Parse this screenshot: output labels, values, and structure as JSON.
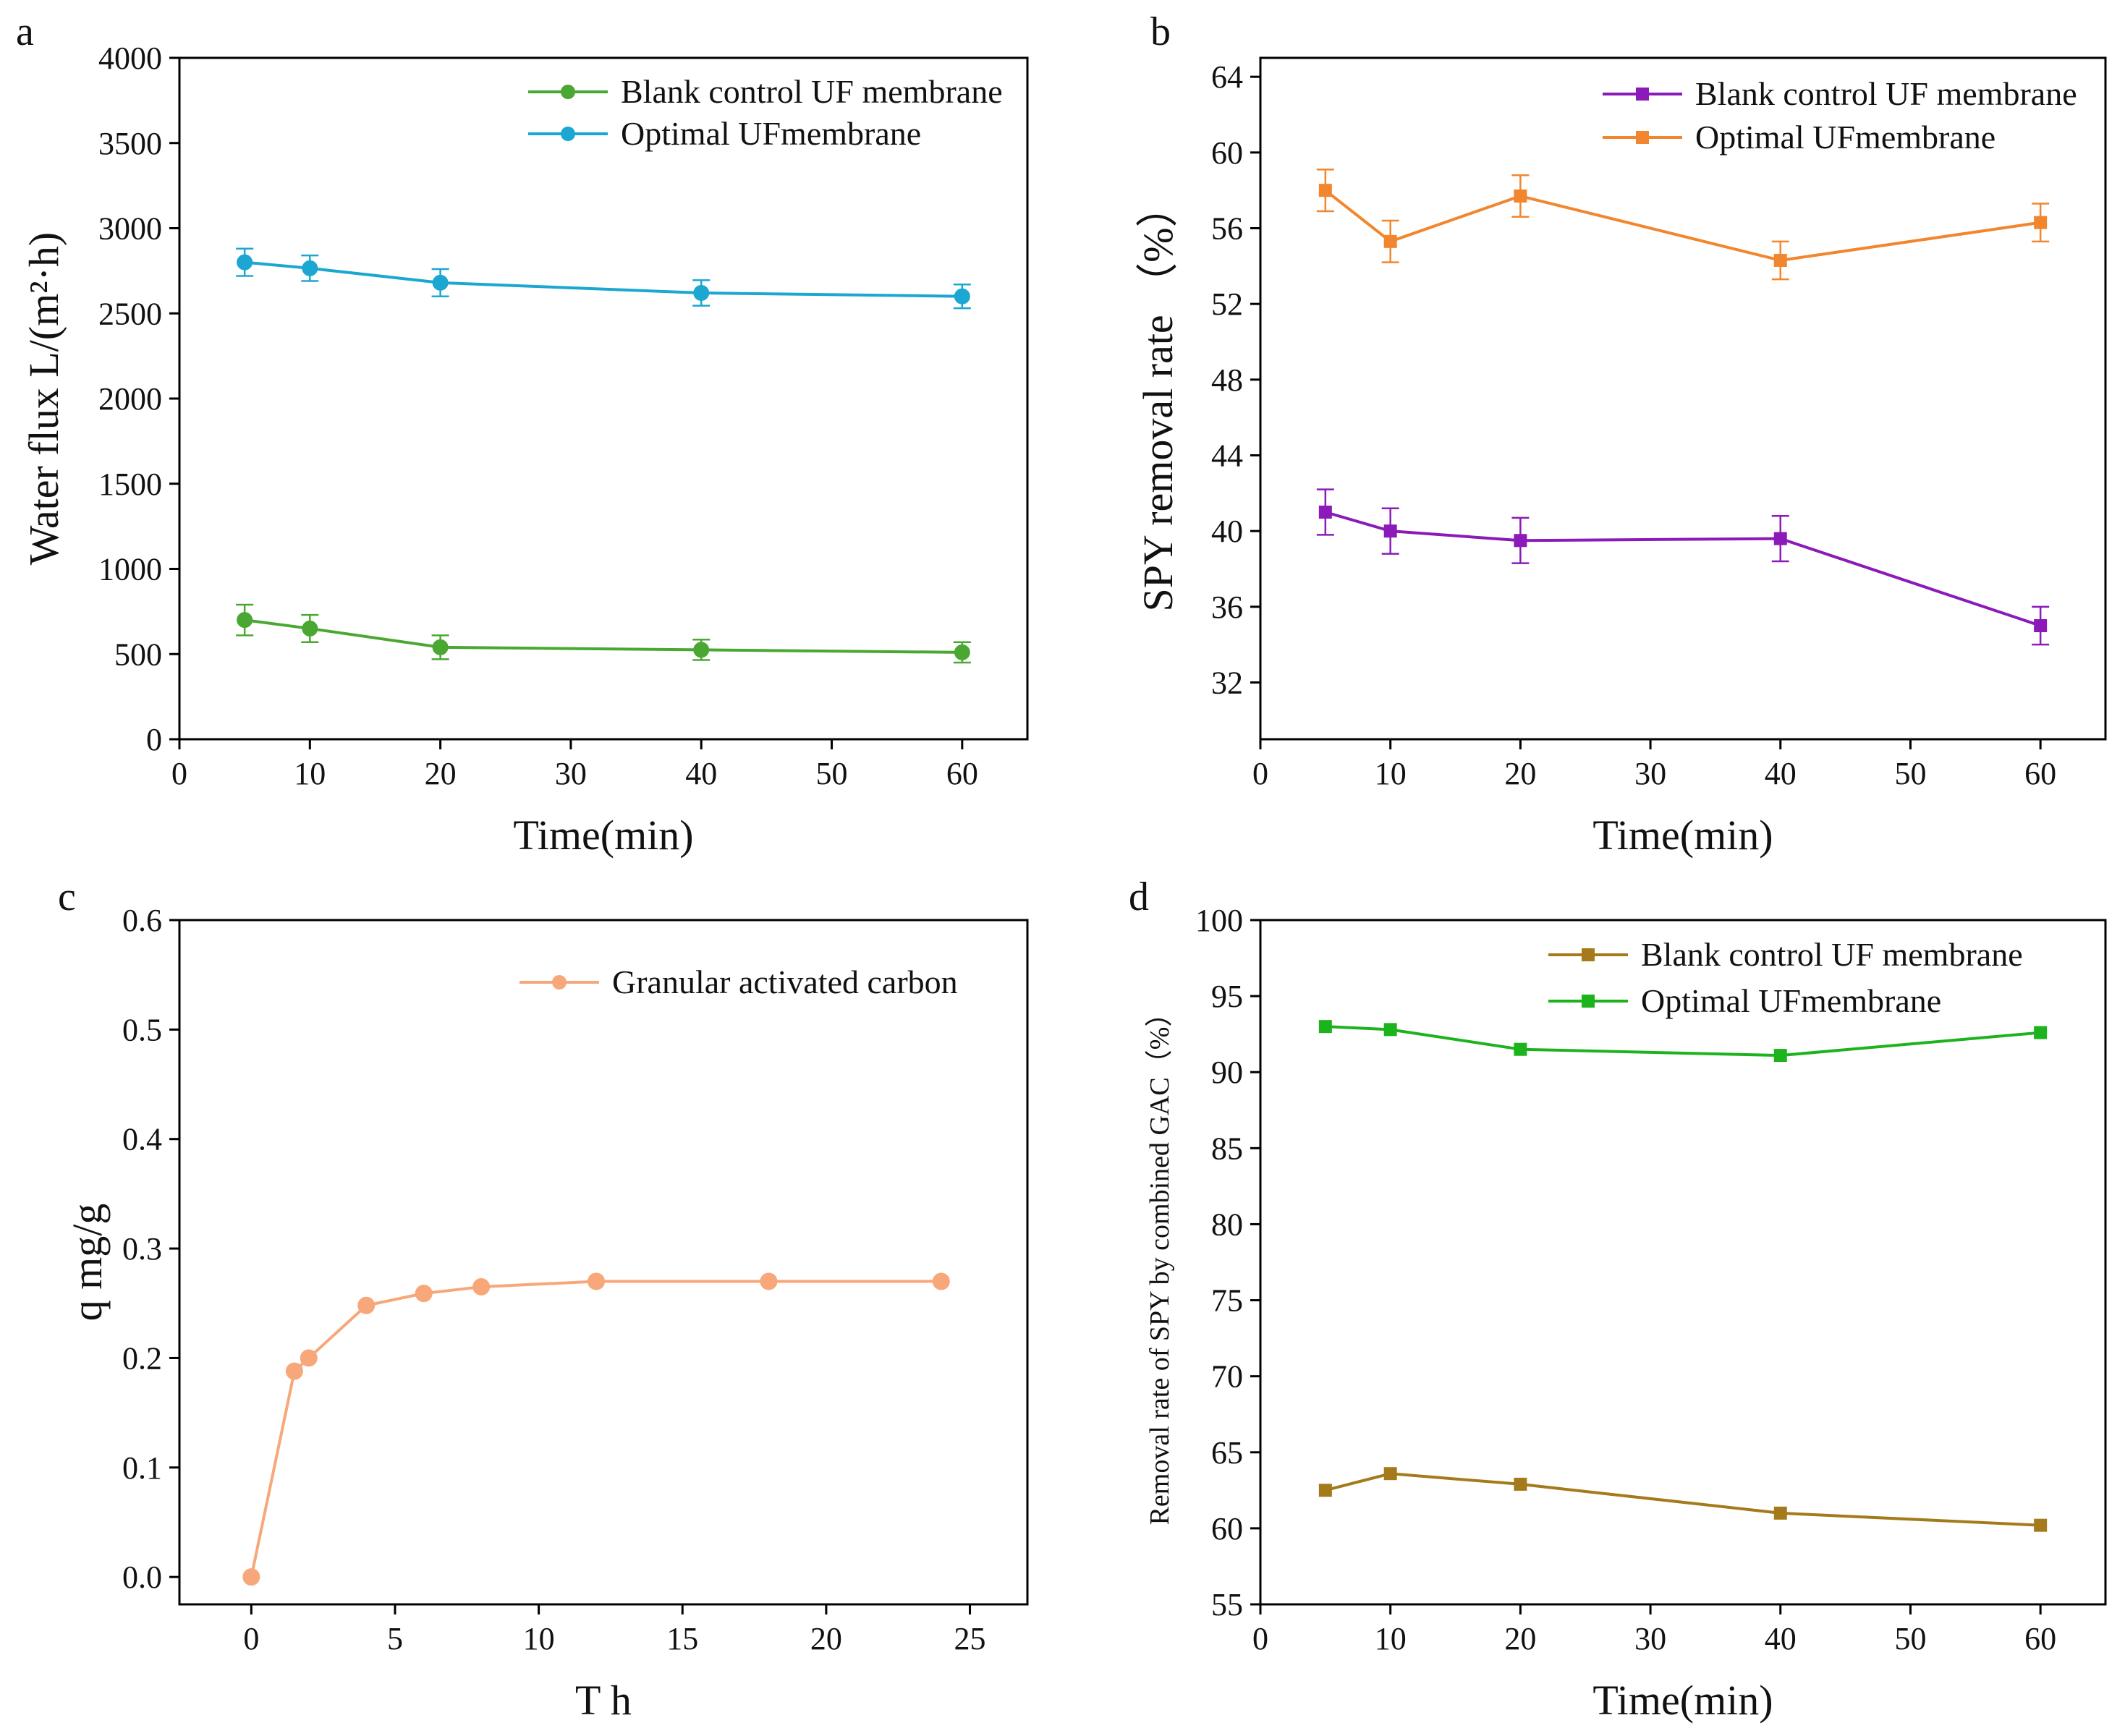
{
  "chart_data": [
    {
      "panel": "a",
      "type": "line",
      "xlabel": "Time(min)",
      "ylabel": "Water flux L/(m²·h)",
      "xlim": [
        0,
        65
      ],
      "ylim": [
        0,
        4000
      ],
      "xticks": [
        0,
        10,
        20,
        30,
        40,
        50,
        60
      ],
      "yticks": [
        0,
        500,
        1000,
        1500,
        2000,
        2500,
        3000,
        3500,
        4000
      ],
      "tick_decimals": 0,
      "legend_position": "top-right",
      "series": [
        {
          "name": "Blank control UF membrane",
          "color": "#4aa832",
          "marker": "circle",
          "x": [
            5,
            10,
            20,
            40,
            60
          ],
          "y": [
            700,
            650,
            540,
            525,
            510
          ],
          "err": [
            90,
            80,
            70,
            60,
            60
          ]
        },
        {
          "name": "Optimal UFmembrane",
          "color": "#1ba7d1",
          "marker": "circle",
          "x": [
            5,
            10,
            20,
            40,
            60
          ],
          "y": [
            2800,
            2765,
            2680,
            2620,
            2600
          ],
          "err": [
            80,
            75,
            80,
            75,
            70
          ]
        }
      ]
    },
    {
      "panel": "b",
      "type": "line",
      "xlabel": "Time(min)",
      "ylabel": "SPY removal rate （%）",
      "xlim": [
        0,
        65
      ],
      "ylim": [
        29,
        65
      ],
      "xticks": [
        0,
        10,
        20,
        30,
        40,
        50,
        60
      ],
      "yticks": [
        32,
        36,
        40,
        44,
        48,
        52,
        56,
        60,
        64
      ],
      "tick_decimals": 0,
      "legend_position": "top-right",
      "series": [
        {
          "name": "Blank control UF membrane",
          "color": "#8b1ab8",
          "marker": "square",
          "x": [
            5,
            10,
            20,
            40,
            60
          ],
          "y": [
            41.0,
            40.0,
            39.5,
            39.6,
            35.0
          ],
          "err": [
            1.2,
            1.2,
            1.2,
            1.2,
            1.0
          ]
        },
        {
          "name": "Optimal UFmembrane",
          "color": "#f2862e",
          "marker": "square",
          "x": [
            5,
            10,
            20,
            40,
            60
          ],
          "y": [
            58.0,
            55.3,
            57.7,
            54.3,
            56.3
          ],
          "err": [
            1.1,
            1.1,
            1.1,
            1.0,
            1.0
          ]
        }
      ]
    },
    {
      "panel": "c",
      "type": "line",
      "xlabel": "T h",
      "ylabel": "q  mg/g",
      "xlim": [
        -2.5,
        27
      ],
      "ylim": [
        -0.025,
        0.6
      ],
      "xticks": [
        0,
        5,
        10,
        15,
        20,
        25
      ],
      "yticks": [
        0.0,
        0.1,
        0.2,
        0.3,
        0.4,
        0.5,
        0.6
      ],
      "tick_decimals": 1,
      "legend_position": "top-right",
      "series": [
        {
          "name": "Granular activated carbon",
          "color": "#f7a77a",
          "marker": "circle",
          "x": [
            0,
            1.5,
            2,
            4,
            6,
            8,
            12,
            18,
            24
          ],
          "y": [
            0.0,
            0.188,
            0.2,
            0.248,
            0.259,
            0.265,
            0.27,
            0.27,
            0.27
          ]
        }
      ]
    },
    {
      "panel": "d",
      "type": "line",
      "xlabel": "Time(min)",
      "ylabel": "Removal rate of SPY by combined GAC（%）",
      "xlim": [
        0,
        65
      ],
      "ylim": [
        55,
        100
      ],
      "xticks": [
        0,
        10,
        20,
        30,
        40,
        50,
        60
      ],
      "yticks": [
        55,
        60,
        65,
        70,
        75,
        80,
        85,
        90,
        95,
        100
      ],
      "tick_decimals": 0,
      "legend_position": "top-right",
      "series": [
        {
          "name": "Blank control UF membrane",
          "color": "#a57a1b",
          "marker": "square",
          "x": [
            5,
            10,
            20,
            40,
            60
          ],
          "y": [
            62.5,
            63.6,
            62.9,
            61.0,
            60.2
          ]
        },
        {
          "name": "Optimal UFmembrane",
          "color": "#1db31d",
          "marker": "square",
          "x": [
            5,
            10,
            20,
            40,
            60
          ],
          "y": [
            93.0,
            92.8,
            91.5,
            91.1,
            92.6
          ]
        }
      ]
    }
  ]
}
